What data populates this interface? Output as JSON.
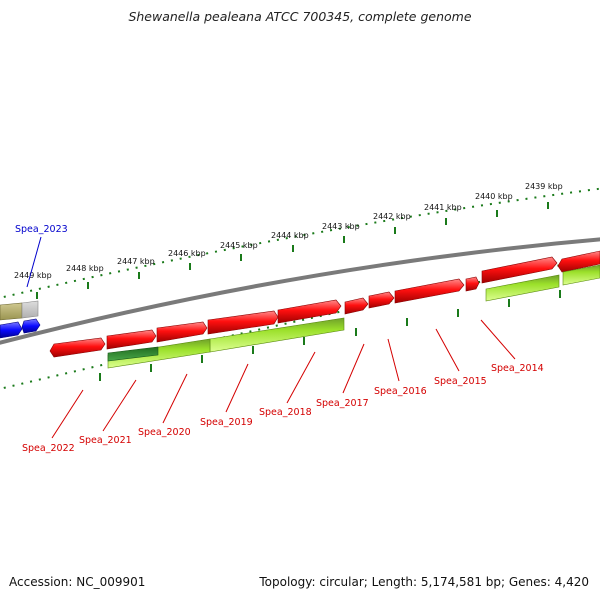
{
  "header": {
    "title": "Shewanella pealeana ATCC 700345, complete genome"
  },
  "footer": {
    "accession": "Accession: NC_009901",
    "summary": "Topology: circular; Length: 5,174,581 bp; Genes: 4,420"
  },
  "colors": {
    "backbone": "#7a7a7a",
    "forward_gene": "#ff1010",
    "reverse_gene": "#b3ff3c",
    "blue_gene": "#0a0aff",
    "label_red": "#d40000",
    "label_blue": "#0000cc",
    "tick_green": "#1a7a1a",
    "dark_green_gene": "#2e8b2e",
    "olive_gene": "#b8b070"
  },
  "ruler": {
    "labels": [
      "2439 kbp",
      "2440 kbp",
      "2441 kbp",
      "2442 kbp",
      "2443 kbp",
      "2444 kbp",
      "2445 kbp",
      "2446 kbp",
      "2447 kbp",
      "2448 kbp",
      "2449 kbp"
    ]
  },
  "genes": {
    "labels": [
      "Spea_2023",
      "Spea_2022",
      "Spea_2021",
      "Spea_2020",
      "Spea_2019",
      "Spea_2018",
      "Spea_2017",
      "Spea_2016",
      "Spea_2015",
      "Spea_2014"
    ]
  }
}
